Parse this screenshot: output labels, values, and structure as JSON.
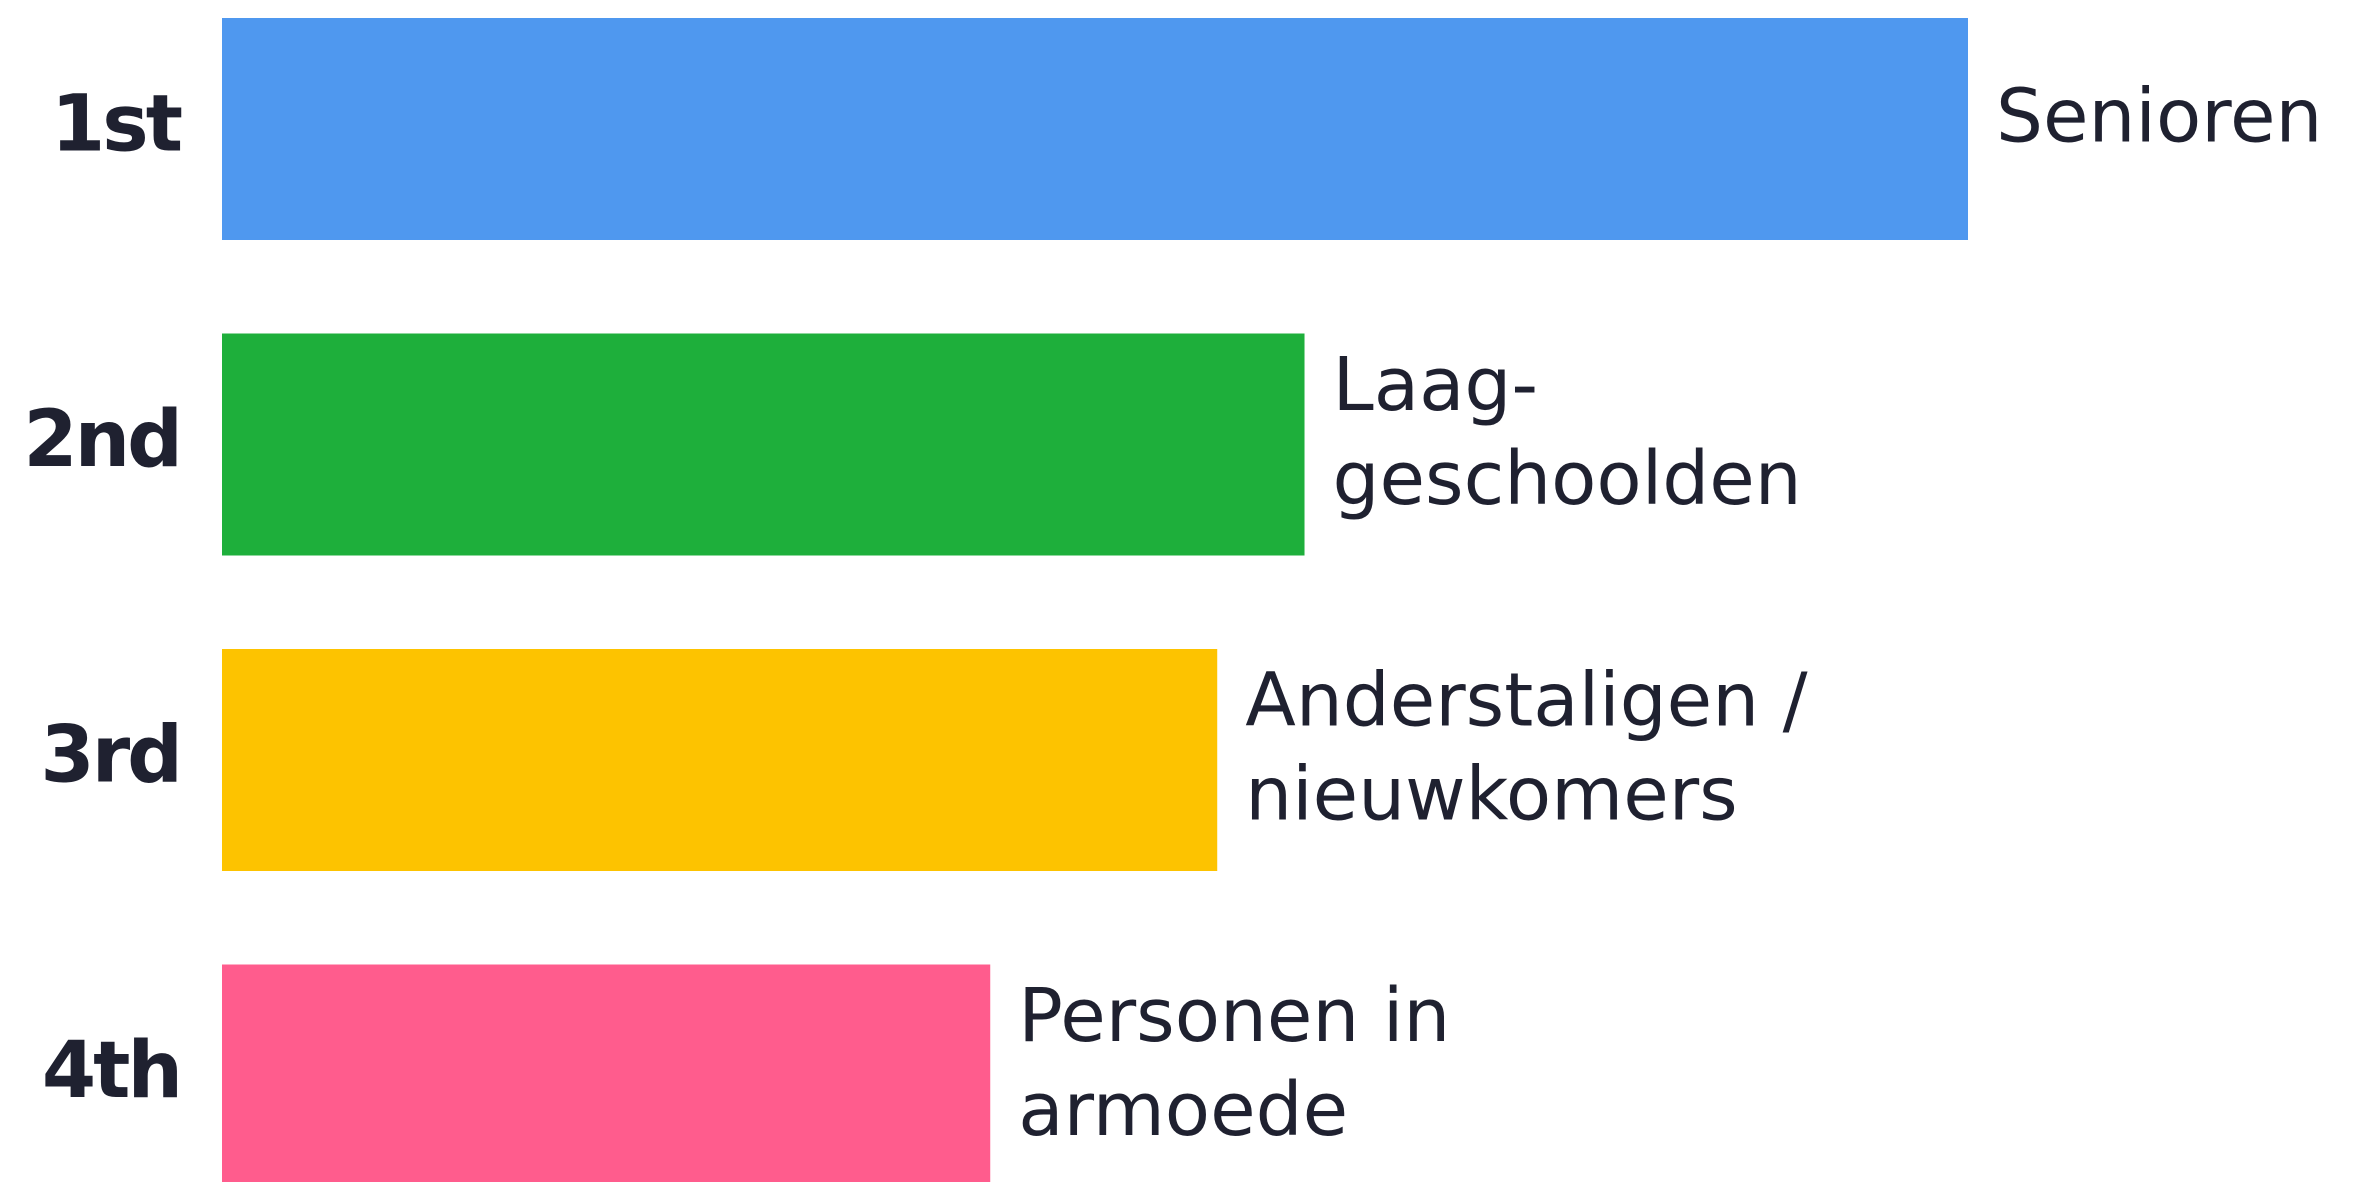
{
  "chart_data": {
    "type": "bar",
    "orientation": "horizontal",
    "categories": [
      "1st",
      "2nd",
      "3rd",
      "4th"
    ],
    "labels": [
      [
        "Senioren"
      ],
      [
        "Laag-",
        "geschoolden"
      ],
      [
        "Anderstaligen /",
        "nieuwkomers"
      ],
      [
        "Personen in",
        "armoede"
      ]
    ],
    "values": [
      100,
      62,
      57,
      44
    ],
    "colors": [
      "#4f98ef",
      "#1eaf3b",
      "#fdc300",
      "#ff5c8d"
    ],
    "xlim": [
      0,
      100
    ]
  }
}
